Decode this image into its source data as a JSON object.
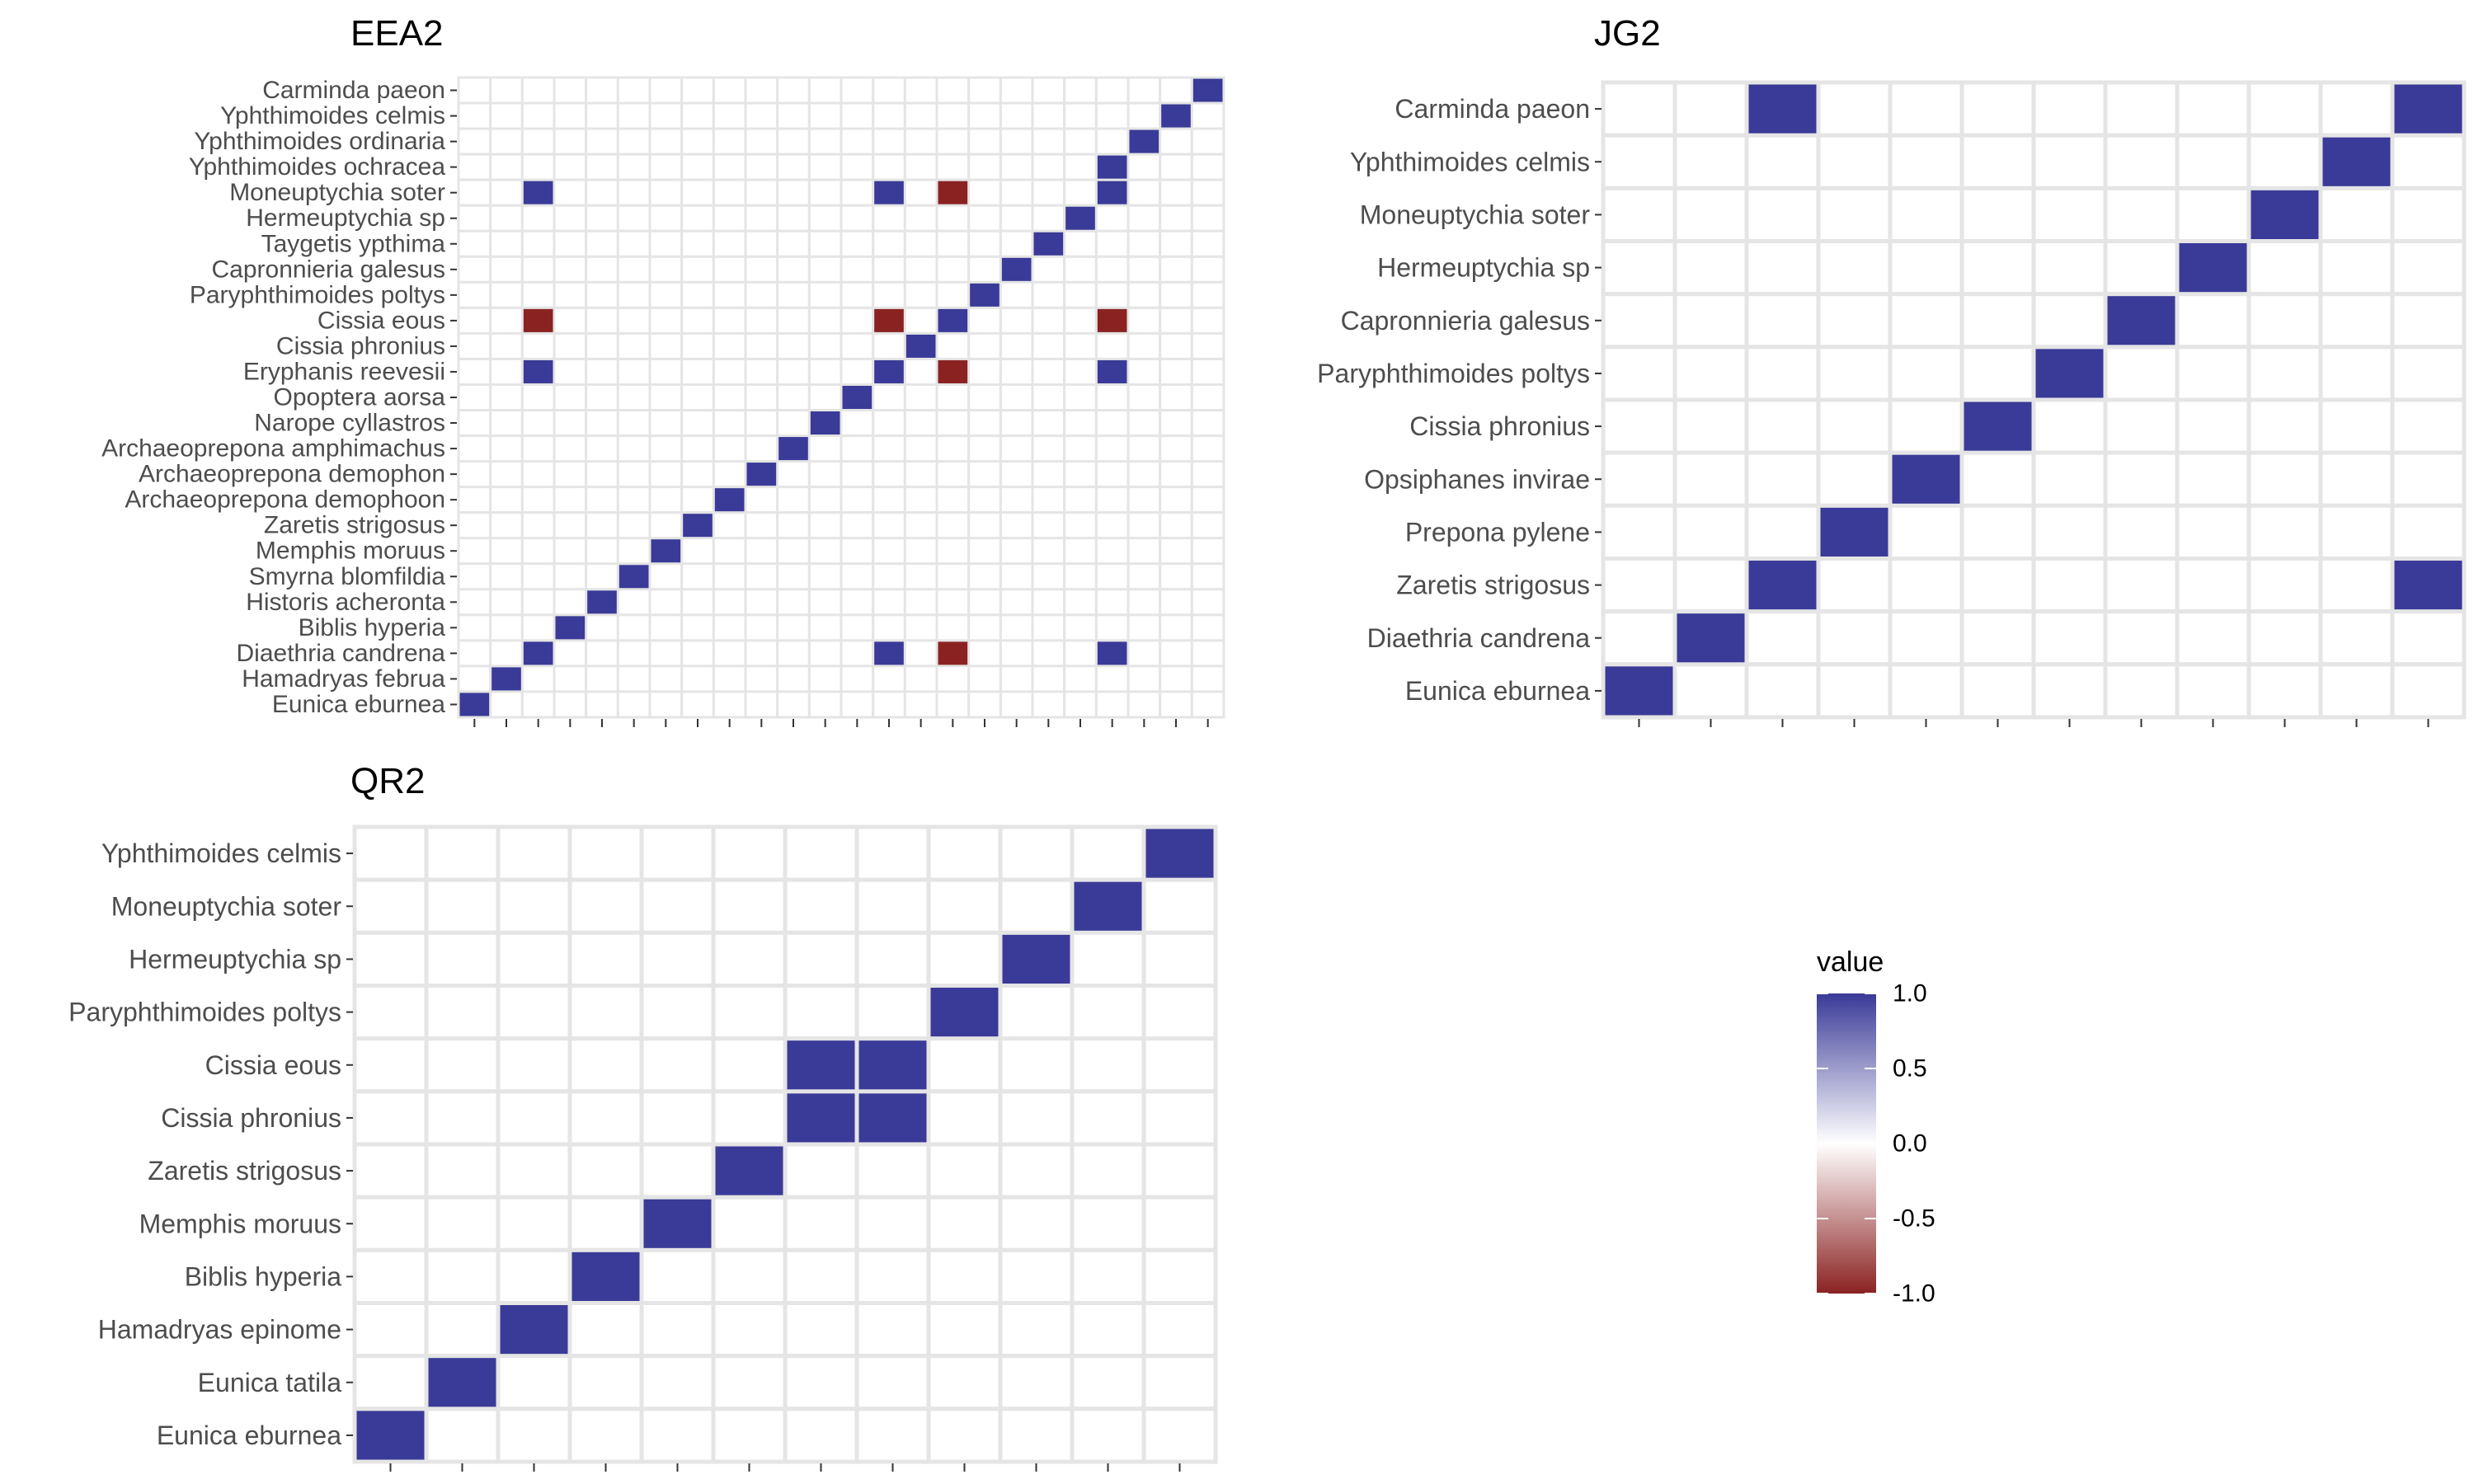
{
  "colors": {
    "positive": "#3a3a98",
    "negative": "#8b2222",
    "empty": "#ffffff",
    "grid": "#e5e5e5",
    "tick": "#333333",
    "label": "#4d4d4d"
  },
  "legend": {
    "title": "value",
    "ticks": [
      {
        "value": 1.0,
        "label": "1.0"
      },
      {
        "value": 0.5,
        "label": "0.5"
      },
      {
        "value": 0.0,
        "label": "0.0"
      },
      {
        "value": -0.5,
        "label": "-0.5"
      },
      {
        "value": -1.0,
        "label": "-1.0"
      }
    ],
    "range": [
      -1.0,
      1.0
    ]
  },
  "chart_data": [
    {
      "type": "heatmap",
      "title": "EEA2",
      "n_cols": 24,
      "rows": [
        "Carminda paeon",
        "Yphthimoides celmis",
        "Yphthimoides ordinaria",
        "Yphthimoides ochracea",
        "Moneuptychia soter",
        "Hermeuptychia sp",
        "Taygetis ypthima",
        "Capronnieria galesus",
        "Paryphthimoides poltys",
        "Cissia eous",
        "Cissia phronius",
        "Eryphanis reevesii",
        "Opoptera aorsa",
        "Narope cyllastros",
        "Archaeoprepona amphimachus",
        "Archaeoprepona demophon",
        "Archaeoprepona demophoon",
        "Zaretis strigosus",
        "Memphis moruus",
        "Smyrna blomfildia",
        "Historis acheronta",
        "Biblis hyperia",
        "Diaethria candrena",
        "Hamadryas februa",
        "Eunica eburnea"
      ],
      "cells": [
        {
          "row": "Eunica eburnea",
          "col": 1,
          "value": 1
        },
        {
          "row": "Hamadryas februa",
          "col": 2,
          "value": 1
        },
        {
          "row": "Diaethria candrena",
          "col": 3,
          "value": 1
        },
        {
          "row": "Biblis hyperia",
          "col": 4,
          "value": 1
        },
        {
          "row": "Historis acheronta",
          "col": 5,
          "value": 1
        },
        {
          "row": "Smyrna blomfildia",
          "col": 6,
          "value": 1
        },
        {
          "row": "Memphis moruus",
          "col": 7,
          "value": 1
        },
        {
          "row": "Zaretis strigosus",
          "col": 8,
          "value": 1
        },
        {
          "row": "Archaeoprepona demophoon",
          "col": 9,
          "value": 1
        },
        {
          "row": "Archaeoprepona demophon",
          "col": 10,
          "value": 1
        },
        {
          "row": "Archaeoprepona amphimachus",
          "col": 11,
          "value": 1
        },
        {
          "row": "Narope cyllastros",
          "col": 12,
          "value": 1
        },
        {
          "row": "Opoptera aorsa",
          "col": 13,
          "value": 1
        },
        {
          "row": "Eryphanis reevesii",
          "col": 3,
          "value": 1
        },
        {
          "row": "Eryphanis reevesii",
          "col": 14,
          "value": 1
        },
        {
          "row": "Eryphanis reevesii",
          "col": 16,
          "value": -1
        },
        {
          "row": "Eryphanis reevesii",
          "col": 21,
          "value": 1
        },
        {
          "row": "Cissia phronius",
          "col": 15,
          "value": 1
        },
        {
          "row": "Cissia eous",
          "col": 3,
          "value": -1
        },
        {
          "row": "Cissia eous",
          "col": 14,
          "value": -1
        },
        {
          "row": "Cissia eous",
          "col": 16,
          "value": 1
        },
        {
          "row": "Cissia eous",
          "col": 21,
          "value": -1
        },
        {
          "row": "Paryphthimoides poltys",
          "col": 17,
          "value": 1
        },
        {
          "row": "Capronnieria galesus",
          "col": 18,
          "value": 1
        },
        {
          "row": "Taygetis ypthima",
          "col": 19,
          "value": 1
        },
        {
          "row": "Hermeuptychia sp",
          "col": 20,
          "value": 1
        },
        {
          "row": "Moneuptychia soter",
          "col": 3,
          "value": 1
        },
        {
          "row": "Moneuptychia soter",
          "col": 14,
          "value": 1
        },
        {
          "row": "Moneuptychia soter",
          "col": 16,
          "value": -1
        },
        {
          "row": "Moneuptychia soter",
          "col": 21,
          "value": 1
        },
        {
          "row": "Yphthimoides ochracea",
          "col": 21,
          "value": 1
        },
        {
          "row": "Yphthimoides ordinaria",
          "col": 22,
          "value": 1
        },
        {
          "row": "Yphthimoides celmis",
          "col": 23,
          "value": 1
        },
        {
          "row": "Carminda paeon",
          "col": 24,
          "value": 1
        },
        {
          "row": "Diaethria candrena",
          "col": 14,
          "value": 1
        },
        {
          "row": "Diaethria candrena",
          "col": 16,
          "value": -1
        },
        {
          "row": "Diaethria candrena",
          "col": 21,
          "value": 1
        }
      ]
    },
    {
      "type": "heatmap",
      "title": "JG2",
      "n_cols": 12,
      "rows": [
        "Carminda paeon",
        "Yphthimoides celmis",
        "Moneuptychia soter",
        "Hermeuptychia sp",
        "Capronnieria galesus",
        "Paryphthimoides poltys",
        "Cissia phronius",
        "Opsiphanes invirae",
        "Prepona pylene",
        "Zaretis strigosus",
        "Diaethria candrena",
        "Eunica eburnea"
      ],
      "cells": [
        {
          "row": "Eunica eburnea",
          "col": 1,
          "value": 1
        },
        {
          "row": "Diaethria candrena",
          "col": 2,
          "value": 1
        },
        {
          "row": "Zaretis strigosus",
          "col": 3,
          "value": 1
        },
        {
          "row": "Zaretis strigosus",
          "col": 12,
          "value": 1
        },
        {
          "row": "Prepona pylene",
          "col": 4,
          "value": 1
        },
        {
          "row": "Opsiphanes invirae",
          "col": 5,
          "value": 1
        },
        {
          "row": "Cissia phronius",
          "col": 6,
          "value": 1
        },
        {
          "row": "Paryphthimoides poltys",
          "col": 7,
          "value": 1
        },
        {
          "row": "Capronnieria galesus",
          "col": 8,
          "value": 1
        },
        {
          "row": "Hermeuptychia sp",
          "col": 9,
          "value": 1
        },
        {
          "row": "Moneuptychia soter",
          "col": 10,
          "value": 1
        },
        {
          "row": "Yphthimoides celmis",
          "col": 11,
          "value": 1
        },
        {
          "row": "Carminda paeon",
          "col": 3,
          "value": 1
        },
        {
          "row": "Carminda paeon",
          "col": 12,
          "value": 1
        }
      ]
    },
    {
      "type": "heatmap",
      "title": "QR2",
      "n_cols": 12,
      "rows": [
        "Yphthimoides celmis",
        "Moneuptychia soter",
        "Hermeuptychia sp",
        "Paryphthimoides poltys",
        "Cissia eous",
        "Cissia phronius",
        "Zaretis strigosus",
        "Memphis moruus",
        "Biblis hyperia",
        "Hamadryas epinome",
        "Eunica tatila",
        "Eunica eburnea"
      ],
      "cells": [
        {
          "row": "Eunica eburnea",
          "col": 1,
          "value": 1
        },
        {
          "row": "Eunica tatila",
          "col": 2,
          "value": 1
        },
        {
          "row": "Hamadryas epinome",
          "col": 3,
          "value": 1
        },
        {
          "row": "Biblis hyperia",
          "col": 4,
          "value": 1
        },
        {
          "row": "Memphis moruus",
          "col": 5,
          "value": 1
        },
        {
          "row": "Zaretis strigosus",
          "col": 6,
          "value": 1
        },
        {
          "row": "Cissia phronius",
          "col": 7,
          "value": 1
        },
        {
          "row": "Cissia phronius",
          "col": 8,
          "value": 1
        },
        {
          "row": "Cissia eous",
          "col": 7,
          "value": 1
        },
        {
          "row": "Cissia eous",
          "col": 8,
          "value": 1
        },
        {
          "row": "Paryphthimoides poltys",
          "col": 9,
          "value": 1
        },
        {
          "row": "Hermeuptychia sp",
          "col": 10,
          "value": 1
        },
        {
          "row": "Moneuptychia soter",
          "col": 11,
          "value": 1
        },
        {
          "row": "Yphthimoides celmis",
          "col": 12,
          "value": 1
        }
      ]
    }
  ]
}
